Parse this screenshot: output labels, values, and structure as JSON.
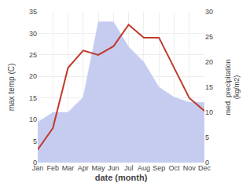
{
  "chart_data": {
    "type": "line",
    "categories": [
      "Jan",
      "Feb",
      "Mar",
      "Apr",
      "May",
      "Jun",
      "Jul",
      "Aug",
      "Sep",
      "Oct",
      "Nov",
      "Dec"
    ],
    "xlabel": "date (month)",
    "ylabel": "max temp (C)",
    "y2label": "med. precipitation\n(kg/m2)",
    "ylim": [
      0,
      35
    ],
    "yticks": [
      0,
      5,
      10,
      15,
      20,
      25,
      30,
      35
    ],
    "y2lim": [
      0,
      30
    ],
    "y2ticks": [
      0,
      5,
      10,
      15,
      20,
      25,
      30
    ],
    "grid": true,
    "series": [
      {
        "type": "area",
        "color": "#c5ccf0",
        "axis": "y2",
        "values": [
          8,
          10,
          10,
          13,
          28,
          28,
          23,
          20,
          15,
          13,
          12,
          12
        ]
      },
      {
        "type": "line",
        "color": "#c0392b",
        "values": [
          3,
          8,
          22,
          26,
          25,
          27,
          32,
          29,
          29,
          22,
          15,
          12
        ]
      }
    ]
  }
}
